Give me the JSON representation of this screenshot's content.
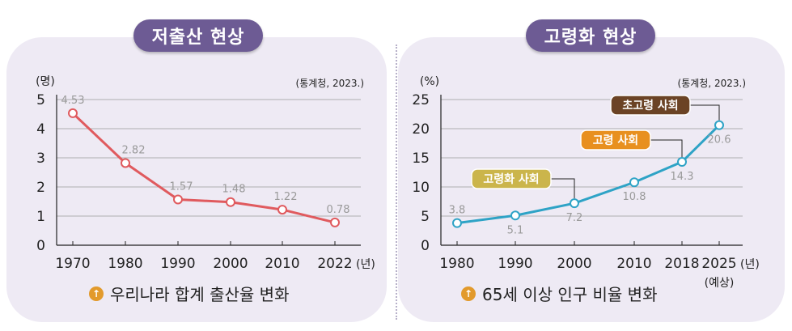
{
  "left": {
    "pill": "저출산 현상",
    "caption": "우리나라 합계 출산율 변화",
    "caption_icon": "up-arrow-circle-icon",
    "chart_data": {
      "type": "line",
      "title": "저출산 현상",
      "ylabel": "(명)",
      "xlabel": "(년)",
      "source": "(통계청, 2023.)",
      "ylim": [
        0,
        5
      ],
      "yticks": [
        "0",
        "1",
        "2",
        "3",
        "4",
        "5"
      ],
      "categories": [
        "1970",
        "1980",
        "1990",
        "2000",
        "2010",
        "2022"
      ],
      "values": [
        4.53,
        2.82,
        1.57,
        1.48,
        1.22,
        0.78
      ],
      "labels": [
        "4.53",
        "2.82",
        "1.57",
        "1.48",
        "1.22",
        "0.78"
      ],
      "color": "#e05a5e"
    }
  },
  "right": {
    "pill": "고령화 현상",
    "caption": "65세 이상 인구 비율 변화",
    "caption_icon": "up-arrow-circle-icon",
    "chart_data": {
      "type": "line",
      "title": "고령화 현상",
      "ylabel": "(%)",
      "xlabel": "(년)",
      "source": "(통계청, 2023.)",
      "ylim": [
        0,
        25
      ],
      "yticks": [
        "0",
        "5",
        "10",
        "15",
        "20",
        "25"
      ],
      "categories": [
        "1980",
        "1990",
        "2000",
        "2010",
        "2018",
        "2025"
      ],
      "x": [
        1980,
        1990,
        2000,
        2010,
        2018,
        2025
      ],
      "x_note": "(예상)",
      "values": [
        3.8,
        5.1,
        7.2,
        10.8,
        14.3,
        20.6
      ],
      "labels": [
        "3.8",
        "5.1",
        "7.2",
        "10.8",
        "14.3",
        "20.6"
      ],
      "color": "#2ea3c6",
      "annotations": [
        {
          "text": "고령화 사회",
          "point": 2,
          "color": "#cbb54b"
        },
        {
          "text": "고령 사회",
          "point": 4,
          "color": "#e8901f"
        },
        {
          "text": "초고령 사회",
          "point": 5,
          "color": "#6b4325"
        }
      ]
    }
  }
}
